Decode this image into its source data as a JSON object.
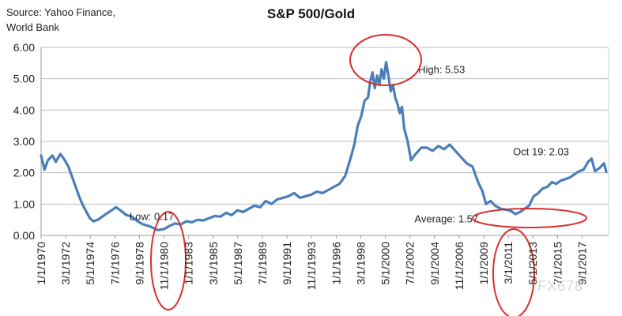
{
  "source_text": [
    "Source: Yahoo Finance,",
    "World Bank"
  ],
  "watermark": "FX678",
  "chart_data": {
    "type": "line",
    "title": "S&P 500/Gold",
    "xlabel": "",
    "ylabel": "",
    "ylim": [
      0,
      6
    ],
    "yticks": [
      "0.00",
      "1.00",
      "2.00",
      "3.00",
      "4.00",
      "5.00",
      "6.00"
    ],
    "grid": true,
    "legend": "none",
    "x_tick_labels": [
      "1/1/1970",
      "3/1/1972",
      "5/1/1974",
      "7/1/1976",
      "9/1/1978",
      "11/1/1980",
      "1/1/1983",
      "3/1/1985",
      "5/1/1987",
      "7/1/1989",
      "9/1/1991",
      "11/1/1993",
      "1/1/1996",
      "3/1/1998",
      "5/1/2000",
      "7/1/2002",
      "9/1/2004",
      "11/1/2006",
      "1/1/2009",
      "3/1/2011",
      "5/1/2013",
      "7/1/2015",
      "9/1/2017"
    ],
    "x_tick_years": [
      1970.0,
      1972.17,
      1974.33,
      1976.5,
      1978.67,
      1980.83,
      1983.0,
      1985.17,
      1987.33,
      1989.5,
      1991.67,
      1993.83,
      1996.0,
      1998.17,
      2000.33,
      2002.5,
      2004.67,
      2006.83,
      2009.0,
      2011.17,
      2013.33,
      2015.5,
      2017.67
    ],
    "color": "#4a7ebb",
    "series": [
      {
        "x": [
          1970.0,
          1970.3,
          1970.6,
          1971.0,
          1971.3,
          1971.7,
          1972.0,
          1972.4,
          1972.8,
          1973.1,
          1973.4,
          1973.7,
          1974.0,
          1974.3,
          1974.6,
          1975.0,
          1975.4,
          1975.8,
          1976.2,
          1976.6,
          1977.0,
          1977.5,
          1978.0,
          1978.5,
          1979.0,
          1979.5,
          1980.0,
          1980.3,
          1980.8,
          1981.3,
          1981.8,
          1982.3,
          1982.8,
          1983.3,
          1983.8,
          1984.3,
          1984.8,
          1985.3,
          1985.8,
          1986.3,
          1986.8,
          1987.3,
          1987.8,
          1988.3,
          1988.8,
          1989.3,
          1989.8,
          1990.3,
          1990.8,
          1991.3,
          1991.8,
          1992.3,
          1992.8,
          1993.3,
          1993.8,
          1994.3,
          1994.8,
          1995.3,
          1995.8,
          1996.3,
          1996.8,
          1997.3,
          1997.6,
          1997.9,
          1998.2,
          1998.5,
          1998.8,
          1999.0,
          1999.2,
          1999.4,
          1999.6,
          1999.8,
          2000.0,
          2000.2,
          2000.4,
          2000.6,
          2000.8,
          2001.0,
          2001.2,
          2001.4,
          2001.6,
          2001.8,
          2002.0,
          2002.3,
          2002.6,
          2003.0,
          2003.5,
          2004.0,
          2004.5,
          2005.0,
          2005.5,
          2006.0,
          2006.5,
          2007.0,
          2007.5,
          2008.0,
          2008.5,
          2008.9,
          2009.2,
          2009.6,
          2010.0,
          2010.5,
          2011.0,
          2011.4,
          2011.8,
          2012.2,
          2012.6,
          2013.0,
          2013.4,
          2013.8,
          2014.2,
          2014.6,
          2015.0,
          2015.4,
          2015.8,
          2016.2,
          2016.6,
          2017.0,
          2017.4,
          2017.8,
          2018.2,
          2018.5,
          2018.8,
          2019.2,
          2019.6,
          2019.8
        ],
        "y": [
          2.55,
          2.1,
          2.4,
          2.55,
          2.35,
          2.6,
          2.45,
          2.2,
          1.8,
          1.5,
          1.2,
          0.95,
          0.75,
          0.55,
          0.45,
          0.5,
          0.6,
          0.7,
          0.8,
          0.9,
          0.8,
          0.65,
          0.6,
          0.45,
          0.35,
          0.3,
          0.22,
          0.17,
          0.2,
          0.3,
          0.38,
          0.35,
          0.45,
          0.42,
          0.5,
          0.48,
          0.55,
          0.62,
          0.6,
          0.72,
          0.65,
          0.8,
          0.75,
          0.85,
          0.95,
          0.9,
          1.1,
          1.0,
          1.15,
          1.2,
          1.25,
          1.35,
          1.2,
          1.25,
          1.3,
          1.4,
          1.35,
          1.45,
          1.55,
          1.65,
          1.9,
          2.5,
          2.9,
          3.5,
          3.8,
          4.3,
          4.4,
          4.9,
          5.2,
          4.7,
          5.1,
          4.8,
          5.3,
          5.0,
          5.53,
          5.1,
          4.6,
          4.8,
          4.4,
          4.2,
          3.9,
          4.1,
          3.4,
          3.0,
          2.4,
          2.6,
          2.8,
          2.8,
          2.7,
          2.85,
          2.75,
          2.9,
          2.7,
          2.5,
          2.3,
          2.2,
          1.7,
          1.4,
          1.0,
          1.1,
          0.95,
          0.85,
          0.82,
          0.78,
          0.68,
          0.75,
          0.85,
          0.95,
          1.25,
          1.35,
          1.5,
          1.55,
          1.7,
          1.65,
          1.75,
          1.8,
          1.85,
          1.95,
          2.05,
          2.1,
          2.35,
          2.45,
          2.05,
          2.15,
          2.3,
          2.03
        ]
      }
    ],
    "annotations": [
      {
        "text": "High: 5.53",
        "x": 2000.3,
        "y": 5.53
      },
      {
        "text": "Low: 0.17",
        "x": 1980.3,
        "y": 0.17
      },
      {
        "text": "Oct 19: 2.03",
        "x": 2019.8,
        "y": 2.03
      },
      {
        "text": "Average: 1.57",
        "x": 2012.3,
        "y": 0.8
      }
    ],
    "circle_color": "#d93030"
  }
}
